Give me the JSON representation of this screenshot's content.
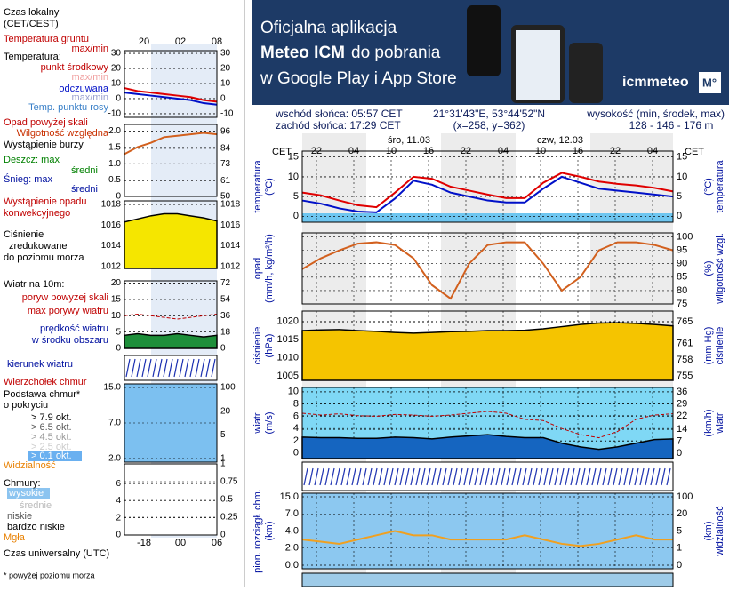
{
  "banner": {
    "line1": "Oficjalna aplikacja",
    "line2_bold": "Meteo ICM",
    "line2_rest": "do pobrania",
    "line3": "w Google Play i App Store",
    "logo": "icmmeteo",
    "badge": "M°"
  },
  "info": {
    "sunrise": "wschód słońca: 05:57 CET",
    "sunset": "zachód słońca: 17:29 CET",
    "coords": "21°31'43\"E, 53°44'52\"N",
    "grid": "(x=258, y=362)",
    "height_title": "wysokość (min, środek, max)",
    "height_values": "128 - 146 - 176 m"
  },
  "meteogram": {
    "zone_left": "CET",
    "zone_right": "CET",
    "days": [
      "śro, 11.03",
      "czw, 12.03"
    ],
    "hours": [
      "22",
      "04",
      "10",
      "16",
      "22",
      "04",
      "10",
      "16",
      "22",
      "04"
    ],
    "panels": [
      {
        "label_left": [
          "temperatura",
          "(°C)"
        ],
        "label_right": [
          "(°C)",
          "temperatura"
        ],
        "ylim_left": [
          -1.5,
          16.5
        ],
        "yticks_left": [
          15,
          10,
          5,
          0
        ],
        "ylim_right": [
          -1.5,
          16.5
        ],
        "yticks_right": [
          15,
          10,
          5,
          0
        ],
        "series": [
          {
            "axis": "left",
            "style": "line",
            "color": "#e00000",
            "values": [
              6,
              5.3,
              4,
              2.8,
              2.3,
              6,
              10,
              9.5,
              7.5,
              6.5,
              5.5,
              4.6,
              4.6,
              8.5,
              11,
              10,
              8.8,
              8.2,
              7.8,
              7.2,
              6.3
            ]
          },
          {
            "axis": "left",
            "style": "line",
            "color": "#0010c8",
            "values": [
              4,
              3.2,
              2,
              1.2,
              1,
              4.5,
              9,
              8,
              6,
              5,
              4,
              3.5,
              3.5,
              7,
              10,
              8.5,
              7,
              6.5,
              6,
              5.5,
              5
            ]
          }
        ]
      },
      {
        "label_left": [
          "opad",
          "(mm/h, kg/m²/h)"
        ],
        "label_right": [
          "(%)",
          "wilgotność wzgl."
        ],
        "ylim_right": [
          75,
          101.5
        ],
        "yticks_right": [
          100,
          95,
          90,
          85,
          80,
          75
        ],
        "series": [
          {
            "axis": "right",
            "style": "line",
            "color": "#d2601e",
            "values": [
              88,
              92,
              95,
              97.5,
              98,
              97,
              92,
              82,
              77,
              90,
              97,
              98,
              98,
              90,
              80,
              85,
              95,
              98,
              98,
              97,
              95
            ]
          }
        ]
      },
      {
        "label_left": [
          "ciśnienie",
          "(hPa)"
        ],
        "label_right": [
          "(mm Hg)",
          "ciśnienie"
        ],
        "ylim_left": [
          1003.8,
          1022.9
        ],
        "yticks_left": [
          1020,
          1015,
          1010,
          1005
        ],
        "ylim_right": [
          754.2,
          767
        ],
        "yticks_right": [
          765,
          761,
          758,
          755
        ],
        "series": [
          {
            "axis": "left",
            "style": "area",
            "color": "#f5c400",
            "values": [
              1017.5,
              1017.7,
              1017.8,
              1017.5,
              1017.3,
              1017,
              1016.8,
              1017,
              1017.2,
              1017.3,
              1017.5,
              1017.5,
              1017.6,
              1018,
              1018.6,
              1019.2,
              1019.6,
              1019.7,
              1019.5,
              1019.2,
              1018.8
            ]
          }
        ]
      },
      {
        "label_left": [
          "wiatr",
          "(m/s)"
        ],
        "label_right": [
          "(km/h)",
          "wiatr"
        ],
        "ylim_left": [
          -0.9,
          10.7
        ],
        "yticks_left": [
          10,
          8,
          6,
          4,
          2,
          0
        ],
        "ylim_right": [
          -3.1,
          38.6
        ],
        "yticks_right": [
          36,
          29,
          22,
          14,
          7,
          0
        ],
        "series": [
          {
            "axis": "left",
            "style": "area",
            "color": "#1565c0",
            "values": [
              2.6,
              2.5,
              2.5,
              2.4,
              2.4,
              2.6,
              2.5,
              2.3,
              2.6,
              2.8,
              3,
              2.7,
              2.5,
              2.5,
              1.6,
              1,
              0.6,
              1,
              1.6,
              2.2,
              2.3
            ]
          },
          {
            "axis": "left",
            "style": "dashed",
            "color": "#c00000",
            "values": [
              6.5,
              6.2,
              6.4,
              6.1,
              6,
              6.3,
              6.2,
              6,
              6.2,
              6.5,
              6.8,
              6.5,
              5.5,
              5.3,
              4,
              3,
              2.5,
              3.5,
              5.5,
              6.2,
              6.4
            ]
          }
        ]
      },
      {
        "label_left": [
          "pion. rozciągł. chm.",
          "(km)"
        ],
        "label_right": [
          "(km)",
          "widzialność"
        ],
        "scale": "ordinal",
        "yticks_left": [
          {
            "value": 15,
            "label": "15.0"
          },
          {
            "value": 7,
            "label": "7.0"
          },
          {
            "value": 4,
            "label": "4.0"
          },
          {
            "value": 2,
            "label": "2.0"
          },
          {
            "value": 0,
            "label": "0.0"
          }
        ],
        "yticks_right": [
          100,
          20,
          5,
          1,
          0
        ],
        "series": [
          {
            "axis": "right",
            "style": "line",
            "color": "#f0a020",
            "values": [
              3,
              2.5,
              2,
              3,
              4,
              5,
              4,
              4,
              3,
              3,
              3,
              3,
              4,
              3,
              2,
              1.5,
              2,
              3,
              4,
              3,
              3
            ]
          }
        ]
      }
    ]
  },
  "legend": {
    "local_time": [
      "Czas lokalny",
      "(CET/CEST)"
    ],
    "hours_top": [
      "20",
      "02",
      "08"
    ],
    "hours_bottom": [
      "-18",
      "00",
      "06"
    ],
    "utc": "Czas uniwersalny (UTC)",
    "footnote": "* powyżej poziomu morza",
    "labels": [
      "Temperatura gruntu",
      "max/min",
      "Temperatura:",
      "punkt środkowy",
      "max/min",
      "odczuwana",
      "max/min",
      "Temp. punktu rosy",
      "Opad powyżej skali",
      "Wilgotność względna",
      "Wystąpienie burzy",
      "Deszcz: max",
      "średni",
      "Śnieg: max",
      "średni",
      "Wystąpienie opadu",
      "konwekcyjnego",
      "Ciśnienie",
      "zredukowane",
      "do poziomu morza",
      "Wiatr na 10m:",
      "poryw powyżej skali",
      "max porywy wiatru",
      "prędkość wiatru",
      "w środku obszaru",
      "kierunek wiatru",
      "Wierzchołek chmur",
      "Podstawa chmur*",
      "o pokryciu",
      "> 7.9 okt.",
      "> 6.5 okt.",
      "> 4.5 okt.",
      "> 2.5 okt.",
      "> 0.1 okt.",
      "Widzialność",
      "Chmury:",
      "wysokie",
      "średnie",
      "niskie",
      "bardzo niskie",
      "Mgła"
    ],
    "panels": [
      {
        "ylim_left": [
          -12.4,
          31.8
        ],
        "yticks_left": [
          30,
          20,
          10,
          0,
          -10
        ],
        "ylim_right": [
          -12.4,
          31.8
        ],
        "yticks_right": [
          30,
          20,
          10,
          0,
          -10
        ],
        "series": [
          {
            "axis": "left",
            "style": "line",
            "color": "#e00000",
            "values": [
              7,
              5,
              4,
              3,
              2,
              1,
              -1,
              -2
            ]
          },
          {
            "axis": "left",
            "style": "line",
            "color": "#0010c8",
            "values": [
              4,
              3,
              2,
              1,
              0,
              -1,
              -3,
              -4
            ]
          }
        ]
      },
      {
        "ylim_left": [
          0,
          2.2
        ],
        "yticks_left": [
          {
            "value": 2,
            "label": "2.0"
          },
          {
            "value": 1.5,
            "label": "1.5"
          },
          {
            "value": 1,
            "label": "1.0"
          },
          {
            "value": 0.5,
            "label": "0.5"
          },
          0
        ],
        "ylim_right": [
          50,
          101
        ],
        "yticks_right": [
          96,
          84,
          73,
          61,
          50
        ],
        "series": [
          {
            "axis": "right",
            "style": "line",
            "color": "#d2601e",
            "values": [
              80,
              85,
              88,
              92,
              93,
              94,
              95,
              94
            ]
          }
        ]
      },
      {
        "ylim_left": [
          1011.8,
          1018.35
        ],
        "yticks_left": [
          1018,
          1016,
          1014,
          1012
        ],
        "ylim_right": [
          1011.8,
          1018.35
        ],
        "yticks_right": [
          1018,
          1016,
          1014,
          1012
        ],
        "series": [
          {
            "axis": "left",
            "style": "area",
            "color": "#f5e600",
            "values": [
              1016.3,
              1016.6,
              1016.9,
              1017.1,
              1017.1,
              1016.9,
              1016.7,
              1016.4
            ]
          }
        ]
      },
      {
        "ylim_left": [
          0,
          20.7
        ],
        "yticks_left": [
          20,
          15,
          10,
          5,
          0
        ],
        "ylim_right": [
          0,
          74.5
        ],
        "yticks_right": [
          72,
          54,
          36,
          18,
          0
        ],
        "series": [
          {
            "axis": "left",
            "style": "area",
            "color": "#1e8f3a",
            "values": [
              4,
              4.5,
              4,
              4,
              4.5,
              4,
              3.5,
              4
            ]
          },
          {
            "axis": "left",
            "style": "dashed",
            "color": "#c00000",
            "values": [
              10,
              10.5,
              10,
              9.5,
              9,
              9.5,
              10,
              10.5
            ]
          }
        ]
      },
      {
        "scale": "ordinal",
        "yticks_left": [
          {
            "value": 15,
            "label": "15.0"
          },
          {
            "value": 7,
            "label": "7.0"
          },
          {
            "value": 2,
            "label": "2.0"
          }
        ],
        "yticks_right": [
          100,
          20,
          5,
          1
        ],
        "series": []
      },
      {
        "ylim_left": [
          0,
          8.3
        ],
        "yticks_left": [
          6,
          4,
          2,
          0
        ],
        "ylim_right": [
          0,
          1
        ],
        "yticks_right": [
          1,
          0.75,
          0.5,
          0.25,
          0
        ],
        "series": []
      }
    ]
  }
}
